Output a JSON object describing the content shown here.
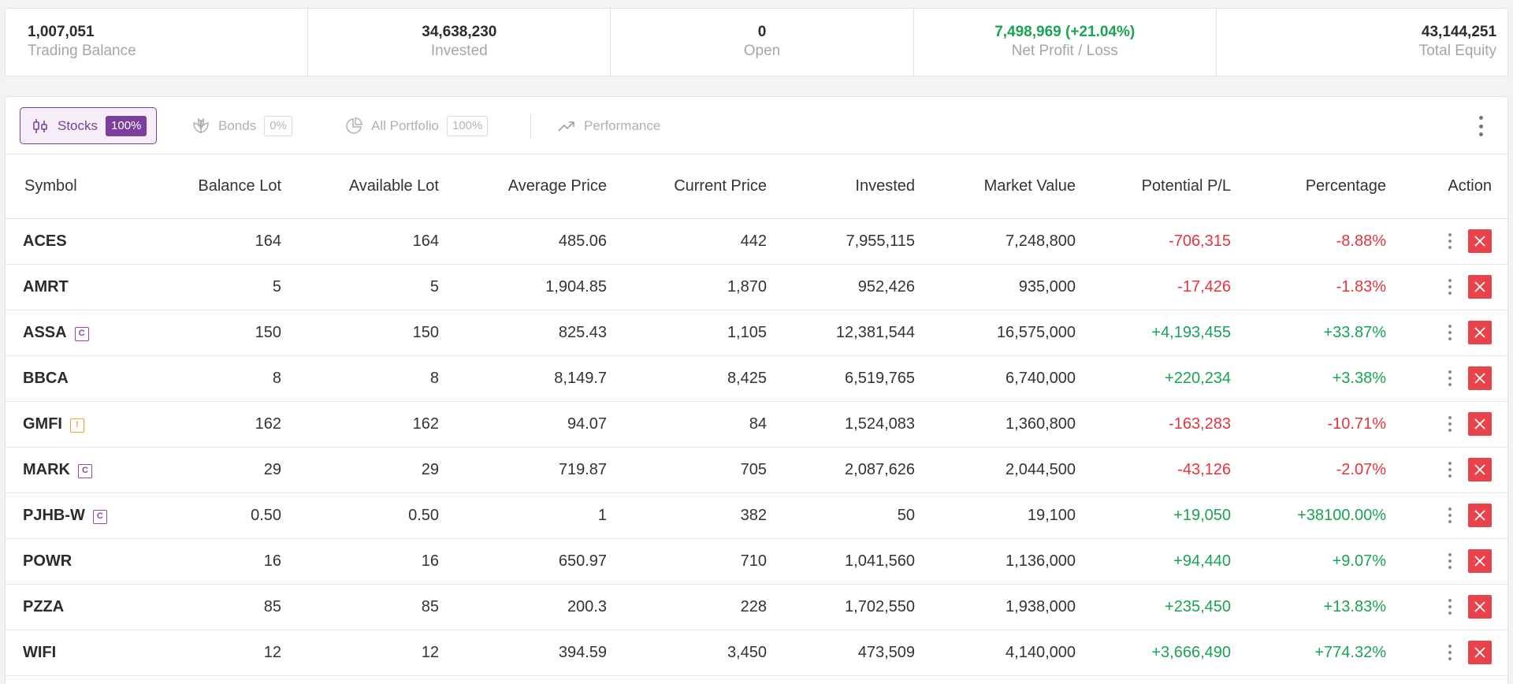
{
  "summary": [
    {
      "value": "1,007,051",
      "label": "Trading Balance"
    },
    {
      "value": "34,638,230",
      "label": "Invested"
    },
    {
      "value": "0",
      "label": "Open"
    },
    {
      "value": "7,498,969 (+21.04%)",
      "label": "Net Profit / Loss"
    },
    {
      "value": "43,144,251",
      "label": "Total Equity"
    }
  ],
  "tabs": [
    {
      "label": "Stocks",
      "pill": "100%",
      "icon": "candlestick-icon",
      "active": true
    },
    {
      "label": "Bonds",
      "pill": "0%",
      "icon": "leaf-icon",
      "active": false
    },
    {
      "label": "All Portfolio",
      "pill": "100%",
      "icon": "pie-chart-icon",
      "active": false
    },
    {
      "label": "Performance",
      "icon": "trend-up-icon",
      "active": false
    }
  ],
  "table": {
    "headers": [
      "Symbol",
      "Balance Lot",
      "Available Lot",
      "Average Price",
      "Current Price",
      "Invested",
      "Market Value",
      "Potential P/L",
      "Percentage",
      "Action"
    ],
    "rows": [
      {
        "symbol": "ACES",
        "badge": "",
        "balance_lot": "164",
        "available_lot": "164",
        "avg_price": "485.06",
        "current_price": "442",
        "invested": "7,955,115",
        "market_value": "7,248,800",
        "pl": "-706,315",
        "pct": "-8.88%"
      },
      {
        "symbol": "AMRT",
        "badge": "",
        "balance_lot": "5",
        "available_lot": "5",
        "avg_price": "1,904.85",
        "current_price": "1,870",
        "invested": "952,426",
        "market_value": "935,000",
        "pl": "-17,426",
        "pct": "-1.83%"
      },
      {
        "symbol": "ASSA",
        "badge": "C",
        "balance_lot": "150",
        "available_lot": "150",
        "avg_price": "825.43",
        "current_price": "1,105",
        "invested": "12,381,544",
        "market_value": "16,575,000",
        "pl": "+4,193,455",
        "pct": "+33.87%"
      },
      {
        "symbol": "BBCA",
        "badge": "",
        "balance_lot": "8",
        "available_lot": "8",
        "avg_price": "8,149.7",
        "current_price": "8,425",
        "invested": "6,519,765",
        "market_value": "6,740,000",
        "pl": "+220,234",
        "pct": "+3.38%"
      },
      {
        "symbol": "GMFI",
        "badge": "!",
        "balance_lot": "162",
        "available_lot": "162",
        "avg_price": "94.07",
        "current_price": "84",
        "invested": "1,524,083",
        "market_value": "1,360,800",
        "pl": "-163,283",
        "pct": "-10.71%"
      },
      {
        "symbol": "MARK",
        "badge": "C",
        "balance_lot": "29",
        "available_lot": "29",
        "avg_price": "719.87",
        "current_price": "705",
        "invested": "2,087,626",
        "market_value": "2,044,500",
        "pl": "-43,126",
        "pct": "-2.07%"
      },
      {
        "symbol": "PJHB-W",
        "badge": "C",
        "balance_lot": "0.50",
        "available_lot": "0.50",
        "avg_price": "1",
        "current_price": "382",
        "invested": "50",
        "market_value": "19,100",
        "pl": "+19,050",
        "pct": "+38100.00%"
      },
      {
        "symbol": "POWR",
        "badge": "",
        "balance_lot": "16",
        "available_lot": "16",
        "avg_price": "650.97",
        "current_price": "710",
        "invested": "1,041,560",
        "market_value": "1,136,000",
        "pl": "+94,440",
        "pct": "+9.07%"
      },
      {
        "symbol": "PZZA",
        "badge": "",
        "balance_lot": "85",
        "available_lot": "85",
        "avg_price": "200.3",
        "current_price": "228",
        "invested": "1,702,550",
        "market_value": "1,938,000",
        "pl": "+235,450",
        "pct": "+13.83%"
      },
      {
        "symbol": "WIFI",
        "badge": "",
        "balance_lot": "12",
        "available_lot": "12",
        "avg_price": "394.59",
        "current_price": "3,450",
        "invested": "473,509",
        "market_value": "4,140,000",
        "pl": "+3,666,490",
        "pct": "+774.32%"
      }
    ]
  },
  "colors": {
    "accent": "#7c3f9b",
    "positive": "#1aa355",
    "negative": "#e5343e",
    "delete": "#e8424a"
  }
}
